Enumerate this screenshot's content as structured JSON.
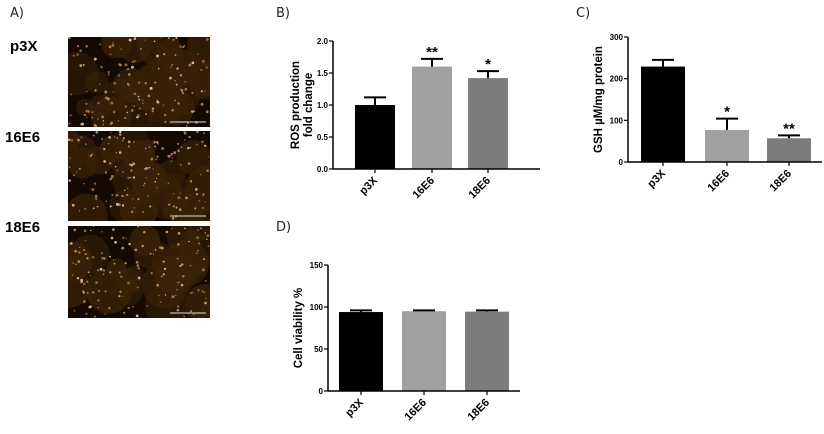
{
  "panels": {
    "A": {
      "letter": "A)",
      "rows": [
        {
          "label": "p3X"
        },
        {
          "label": "16E6"
        },
        {
          "label": "18E6"
        }
      ]
    },
    "B": {
      "letter": "B)"
    },
    "C": {
      "letter": "C)"
    },
    "D": {
      "letter": "D)"
    }
  },
  "colors": {
    "p3X": "#000000",
    "16E6": "#a0a0a2",
    "18E6": "#7c7c7c",
    "micro_bg": "#140a02",
    "micro_cells": "#c08a3a"
  },
  "chart_data": [
    {
      "panel": "B",
      "type": "bar",
      "title": "",
      "xlabel": "",
      "ylabel": "ROS production fold change",
      "ylabel_lines": [
        "ROS production",
        "fold change"
      ],
      "categories": [
        "p3X",
        "16E6",
        "18E6"
      ],
      "values": [
        1.0,
        1.6,
        1.42
      ],
      "errors": [
        0.12,
        0.12,
        0.11
      ],
      "significance": [
        "",
        "**",
        "*"
      ],
      "ylim": [
        0,
        2.0
      ],
      "yticks": [
        "0.0",
        "0.5",
        "1.0",
        "1.5",
        "2.0"
      ],
      "grid": false,
      "legend": "none"
    },
    {
      "panel": "C",
      "type": "bar",
      "title": "",
      "xlabel": "",
      "ylabel": "GSH µM/mg protein",
      "categories": [
        "p3X",
        "16E6",
        "18E6"
      ],
      "values": [
        229,
        77,
        57
      ],
      "errors": [
        16,
        27,
        7
      ],
      "significance": [
        "",
        "*",
        "**"
      ],
      "ylim": [
        0,
        300
      ],
      "yticks": [
        "0",
        "100",
        "200",
        "300"
      ],
      "grid": false,
      "legend": "none"
    },
    {
      "panel": "D",
      "type": "bar",
      "title": "",
      "xlabel": "",
      "ylabel": "Cell viability %",
      "categories": [
        "p3X",
        "16E6",
        "18E6"
      ],
      "values": [
        94,
        95,
        94.5
      ],
      "errors": [
        2,
        1,
        1.5
      ],
      "significance": [
        "",
        "",
        ""
      ],
      "ylim": [
        0,
        150
      ],
      "yticks": [
        "0",
        "50",
        "100",
        "150"
      ],
      "grid": false,
      "legend": "none"
    }
  ]
}
